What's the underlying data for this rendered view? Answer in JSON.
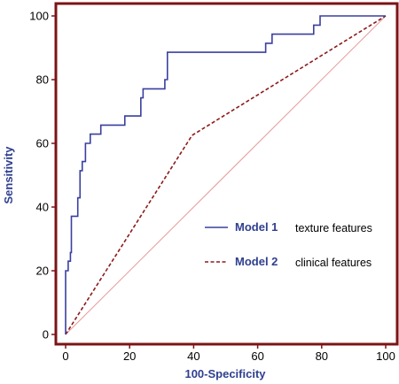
{
  "chart_data": {
    "type": "line",
    "xlabel": "100-Specificity",
    "ylabel": "Sensitivity",
    "xlim": [
      0,
      100
    ],
    "ylim": [
      0,
      100
    ],
    "xticks": [
      0,
      20,
      40,
      60,
      80,
      100
    ],
    "yticks": [
      0,
      20,
      40,
      60,
      80,
      100
    ],
    "tick_labels_x": [
      "0",
      "20",
      "40",
      "60",
      "80",
      "100"
    ],
    "tick_labels_y": [
      "0",
      "20",
      "40",
      "60",
      "80",
      "100"
    ],
    "grid": false,
    "legend_position": "center-right",
    "frame_color": "#7b1416",
    "series": [
      {
        "name": "Model 1",
        "description": "texture features",
        "style": "solid",
        "color": "#3a3fa0",
        "x": [
          0,
          0,
          0.8,
          0.8,
          1.5,
          1.5,
          1.8,
          1.8,
          3.8,
          3.8,
          4.5,
          4.5,
          5.2,
          5.2,
          6.2,
          6.2,
          7.7,
          7.7,
          11,
          11,
          12.2,
          12.2,
          18.5,
          18.5,
          23.5,
          23.5,
          24.2,
          24.2,
          31,
          31,
          31.8,
          31.8,
          62.5,
          62.5,
          64.5,
          64.5,
          77.5,
          77.5,
          79.5,
          79.5,
          100
        ],
        "y": [
          0,
          20,
          20,
          23,
          23,
          25.7,
          25.7,
          37.1,
          37.1,
          42.9,
          42.9,
          51.4,
          51.4,
          54.3,
          54.3,
          60,
          60,
          62.9,
          62.9,
          65.7,
          65.7,
          65.7,
          65.7,
          68.6,
          68.6,
          74.3,
          74.3,
          77.1,
          77.1,
          80,
          80,
          88.6,
          88.6,
          91.4,
          91.4,
          94.3,
          94.3,
          97.1,
          97.1,
          100,
          100
        ]
      },
      {
        "name": "Model 2",
        "description": "clinical features",
        "style": "dashed",
        "color": "#8b1a1a",
        "x": [
          0,
          39.5,
          100
        ],
        "y": [
          0,
          62.5,
          100
        ]
      },
      {
        "name": "",
        "style": "solid",
        "color": "#e69a9a",
        "x": [
          0,
          100
        ],
        "y": [
          0,
          100
        ]
      }
    ],
    "legend": [
      {
        "name": "Model 1",
        "description": "texture features"
      },
      {
        "name": "Model 2",
        "description": "clinical features"
      }
    ]
  }
}
